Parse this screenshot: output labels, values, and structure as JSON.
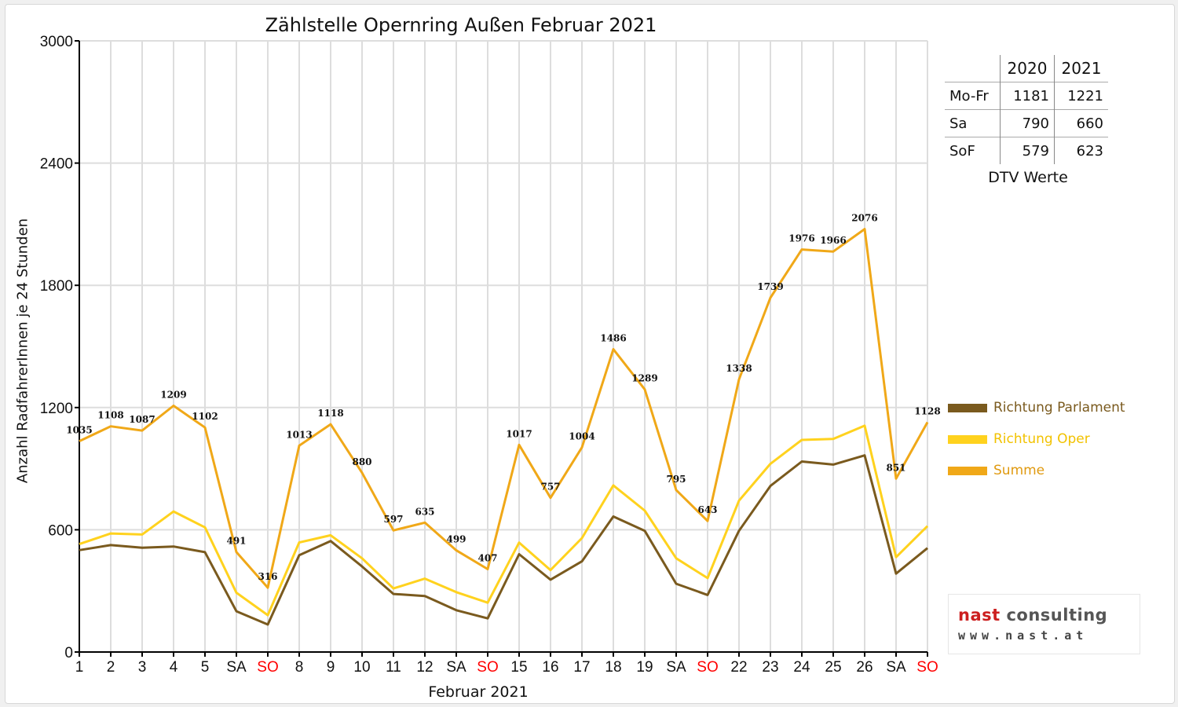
{
  "colors": {
    "parlament": "#7a5a1e",
    "oper": "#ffd21e",
    "summe": "#f0a818",
    "weekend_red": "#ff0000",
    "grid": "#dddddd"
  },
  "logo": {
    "name_part1": "nast",
    "name_part2": " consulting",
    "url": "www.nast.at"
  },
  "dtv": {
    "caption": "DTV Werte",
    "headers": [
      "",
      "2020",
      "2021"
    ],
    "rows": [
      {
        "label": "Mo-Fr",
        "v2020": "1181",
        "v2021": "1221"
      },
      {
        "label": "Sa",
        "v2020": "790",
        "v2021": "660"
      },
      {
        "label": "SoF",
        "v2020": "579",
        "v2021": "623"
      }
    ]
  },
  "chart_data": {
    "type": "line",
    "title": "Zählstelle Opernring Außen Februar 2021",
    "xlabel": "Februar 2021",
    "ylabel": "Anzahl RadfahrerInnen je 24 Stunden",
    "ylim": [
      0,
      3000
    ],
    "yticks": [
      0,
      600,
      1200,
      1800,
      2400,
      3000
    ],
    "grid": true,
    "legend_position": "right",
    "categories": [
      "1",
      "2",
      "3",
      "4",
      "5",
      "SA",
      "SO",
      "8",
      "9",
      "10",
      "11",
      "12",
      "SA",
      "SO",
      "15",
      "16",
      "17",
      "18",
      "19",
      "SA",
      "SO",
      "22",
      "23",
      "24",
      "25",
      "26",
      "SA",
      "SO"
    ],
    "weekend_red_labels": [
      6,
      13,
      20,
      27
    ],
    "series": [
      {
        "name": "Richtung Parlament",
        "color": "#7a5a1e",
        "values": [
          500,
          525,
          512,
          518,
          490,
          200,
          135,
          475,
          545,
          420,
          285,
          275,
          205,
          165,
          480,
          355,
          445,
          665,
          595,
          335,
          280,
          595,
          815,
          935,
          920,
          965,
          385,
          510
        ]
      },
      {
        "name": "Richtung Oper",
        "color": "#ffd21e",
        "values": [
          530,
          582,
          577,
          690,
          612,
          291,
          181,
          538,
          573,
          460,
          312,
          360,
          294,
          242,
          537,
          402,
          559,
          818,
          694,
          460,
          363,
          743,
          924,
          1041,
          1046,
          1111,
          466,
          618
        ]
      },
      {
        "name": "Summe",
        "color": "#f0a818",
        "show_labels": true,
        "values": [
          1035,
          1108,
          1087,
          1209,
          1102,
          491,
          316,
          1013,
          1118,
          880,
          597,
          635,
          499,
          407,
          1017,
          757,
          1004,
          1486,
          1289,
          795,
          643,
          1338,
          1739,
          1976,
          1966,
          2076,
          851,
          1128
        ]
      }
    ]
  }
}
